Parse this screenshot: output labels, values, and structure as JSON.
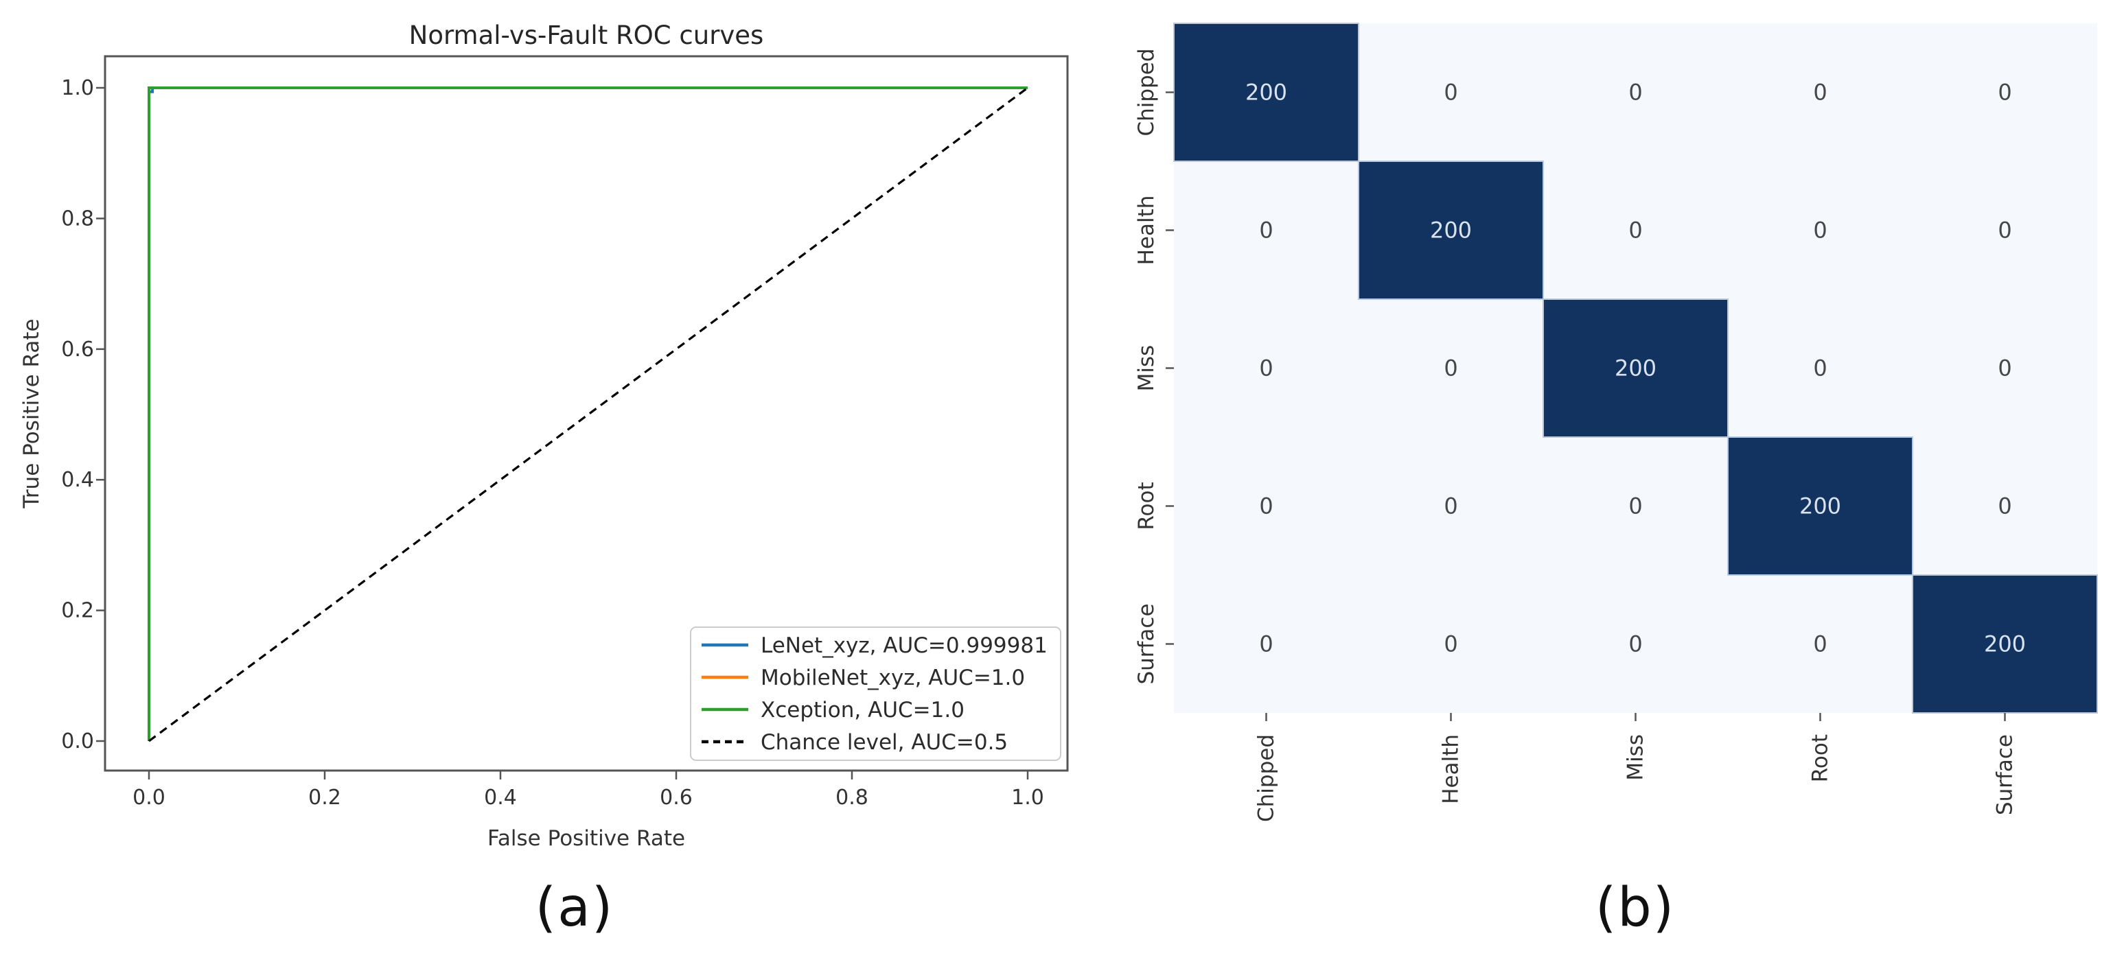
{
  "figure": {
    "captions": {
      "a": "(a)",
      "b": "(b)"
    }
  },
  "chart_data": [
    {
      "type": "line",
      "name": "roc",
      "title": "Normal-vs-Fault ROC curves",
      "xlabel": "False Positive Rate",
      "ylabel": "True Positive Rate",
      "xlim": [
        -0.045,
        1.045
      ],
      "ylim": [
        -0.045,
        1.045
      ],
      "xticks": [
        "0.0",
        "0.2",
        "0.4",
        "0.6",
        "0.8",
        "1.0"
      ],
      "yticks": [
        "0.0",
        "0.2",
        "0.4",
        "0.6",
        "0.8",
        "1.0"
      ],
      "grid": false,
      "legend_position": "lower right",
      "series": [
        {
          "name": "LeNet_xyz, AUC=0.999981",
          "color": "#1f77b4",
          "dash": "solid",
          "x": [
            0,
            0,
            0.004,
            0.004,
            1
          ],
          "y": [
            0,
            0.994,
            0.994,
            1,
            1
          ]
        },
        {
          "name": "MobileNet_xyz, AUC=1.0",
          "color": "#ff7f0e",
          "dash": "solid",
          "x": [
            0,
            0,
            1
          ],
          "y": [
            0,
            1,
            1
          ]
        },
        {
          "name": "Xception, AUC=1.0",
          "color": "#2ca02c",
          "dash": "solid",
          "x": [
            0,
            0,
            1
          ],
          "y": [
            0,
            1,
            1
          ]
        },
        {
          "name": "Chance level, AUC=0.5",
          "color": "#000000",
          "dash": "dashed",
          "x": [
            0,
            1
          ],
          "y": [
            0,
            1
          ]
        }
      ]
    },
    {
      "type": "heatmap",
      "name": "confusion-matrix",
      "x_categories": [
        "Chipped",
        "Health",
        "Miss",
        "Root",
        "Surface"
      ],
      "y_categories": [
        "Chipped",
        "Health",
        "Miss",
        "Root",
        "Surface"
      ],
      "matrix": [
        [
          200,
          0,
          0,
          0,
          0
        ],
        [
          0,
          200,
          0,
          0,
          0
        ],
        [
          0,
          0,
          200,
          0,
          0
        ],
        [
          0,
          0,
          0,
          200,
          0
        ],
        [
          0,
          0,
          0,
          0,
          200
        ]
      ],
      "colors": {
        "cell_high": "#123360",
        "cell_low": "#f5f8fd",
        "cell_border": "#b8c7de",
        "annot_high": "#dae2ee",
        "annot_low": "#474747",
        "tick": "#555555",
        "label_text": "#333333"
      }
    }
  ]
}
